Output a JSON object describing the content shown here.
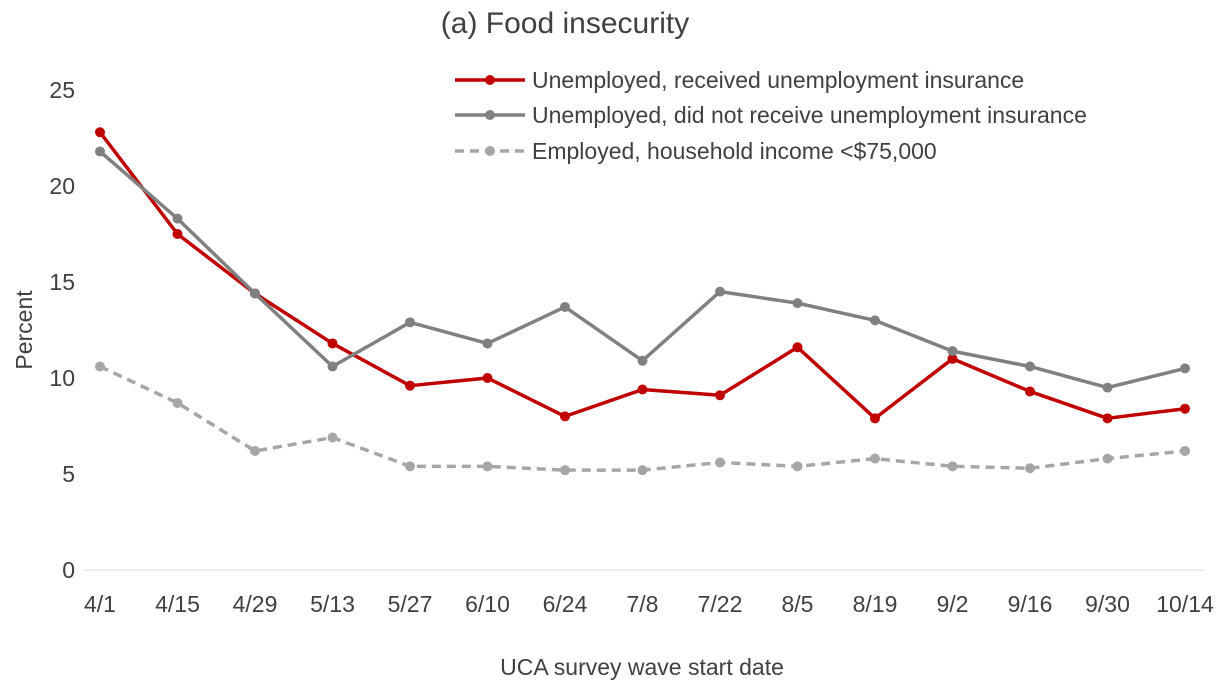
{
  "chart_data": {
    "type": "line",
    "title": "(a) Food insecurity",
    "xlabel": "UCA survey wave start date",
    "ylabel": "Percent",
    "ylim": [
      0,
      25
    ],
    "yticks": [
      0,
      5,
      10,
      15,
      20,
      25
    ],
    "grid": false,
    "legend_position": "top-right",
    "categories": [
      "4/1",
      "4/15",
      "4/29",
      "5/13",
      "5/27",
      "6/10",
      "6/24",
      "7/8",
      "7/22",
      "8/5",
      "8/19",
      "9/2",
      "9/16",
      "9/30",
      "10/14"
    ],
    "series": [
      {
        "name": "Unemployed, received unemployment insurance",
        "color": "#c00000",
        "dash": false,
        "values": [
          22.8,
          17.5,
          14.4,
          11.8,
          9.6,
          10.0,
          8.0,
          9.4,
          9.1,
          11.6,
          7.9,
          11.0,
          9.3,
          7.9,
          8.4
        ]
      },
      {
        "name": "Unemployed, did not receive unemployment insurance",
        "color": "#808080",
        "dash": false,
        "values": [
          21.8,
          18.3,
          14.4,
          10.6,
          12.9,
          11.8,
          13.7,
          10.9,
          14.5,
          13.9,
          13.0,
          11.4,
          10.6,
          9.5,
          10.5
        ]
      },
      {
        "name": "Employed, household income <$75,000",
        "color": "#a6a6a6",
        "dash": true,
        "values": [
          10.6,
          8.7,
          6.2,
          6.9,
          5.4,
          5.4,
          5.2,
          5.2,
          5.6,
          5.4,
          5.8,
          5.4,
          5.3,
          5.8,
          6.2
        ]
      }
    ]
  }
}
